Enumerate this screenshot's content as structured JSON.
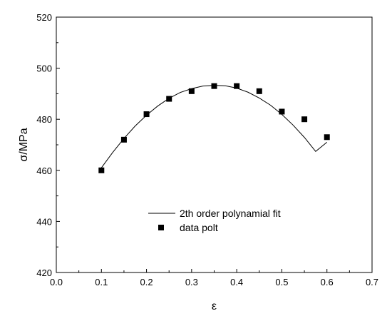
{
  "chart_data": {
    "type": "scatter",
    "title": "",
    "xlabel": "ε",
    "ylabel": "σ/MPa",
    "xlim": [
      0.0,
      0.7
    ],
    "ylim": [
      420,
      520
    ],
    "x_ticks": [
      "0.0",
      "0.1",
      "0.2",
      "0.3",
      "0.4",
      "0.5",
      "0.6",
      "0.7"
    ],
    "y_ticks": [
      "420",
      "440",
      "460",
      "480",
      "500",
      "520"
    ],
    "grid": false,
    "legend_position": "lower-center",
    "series": [
      {
        "name": "2th order polynamial fit",
        "kind": "line",
        "color": "#000000",
        "x": [
          0.1,
          0.125,
          0.15,
          0.175,
          0.2,
          0.225,
          0.25,
          0.275,
          0.3,
          0.325,
          0.35,
          0.375,
          0.4,
          0.425,
          0.45,
          0.475,
          0.5,
          0.525,
          0.55,
          0.575,
          0.6
        ],
        "y": [
          461,
          467,
          472.5,
          477.4,
          481.6,
          485.2,
          488.2,
          490.5,
          492,
          493,
          493.3,
          493.1,
          492.2,
          490.6,
          488.3,
          485.5,
          481.9,
          477.7,
          472.9,
          467.4,
          471
        ]
      },
      {
        "name": "data polt",
        "kind": "scatter",
        "marker": "square",
        "color": "#000000",
        "x": [
          0.1,
          0.15,
          0.2,
          0.25,
          0.3,
          0.35,
          0.4,
          0.45,
          0.5,
          0.55,
          0.6
        ],
        "y": [
          460,
          472,
          482,
          488,
          491,
          493,
          493,
          491,
          483,
          480,
          473
        ]
      }
    ]
  }
}
